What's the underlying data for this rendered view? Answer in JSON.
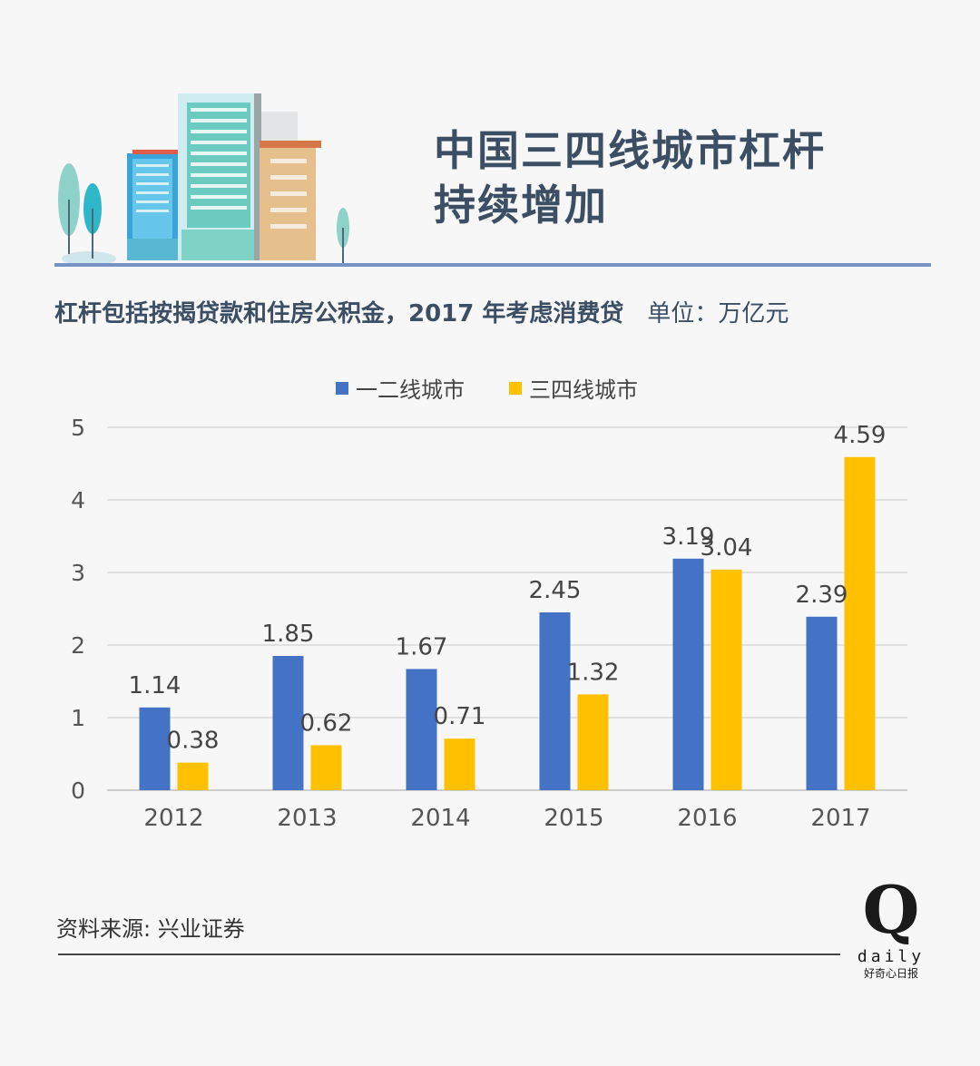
{
  "header": {
    "title_line1": "中国三四线城市杠杆",
    "title_line2": "持续增加"
  },
  "subtitle": {
    "main": "杠杆包括按揭贷款和住房公积金，2017 年考虑消费贷",
    "unit": "单位：万亿元"
  },
  "source": "资料来源: 兴业证券",
  "logo": {
    "mark": "Q",
    "word": "daily",
    "tagline": "好奇心日报"
  },
  "icons": [
    "city-buildings-illustration",
    "tree-icon"
  ],
  "colors": {
    "series1": "#4472c4",
    "series2": "#ffc000",
    "title": "#3b4e63",
    "divider": "#7793c6",
    "grid": "#d9d9d9"
  },
  "chart_data": {
    "type": "bar",
    "categories": [
      "2012",
      "2013",
      "2014",
      "2015",
      "2016",
      "2017"
    ],
    "series": [
      {
        "name": "一二线城市",
        "values": [
          1.14,
          1.85,
          1.67,
          2.45,
          3.19,
          2.39
        ]
      },
      {
        "name": "三四线城市",
        "values": [
          0.38,
          0.62,
          0.71,
          1.32,
          3.04,
          4.59
        ]
      }
    ],
    "yticks": [
      "0",
      "1",
      "2",
      "3",
      "4",
      "5"
    ],
    "ylim": [
      0,
      5
    ],
    "grid": true,
    "legend": "top-center"
  }
}
